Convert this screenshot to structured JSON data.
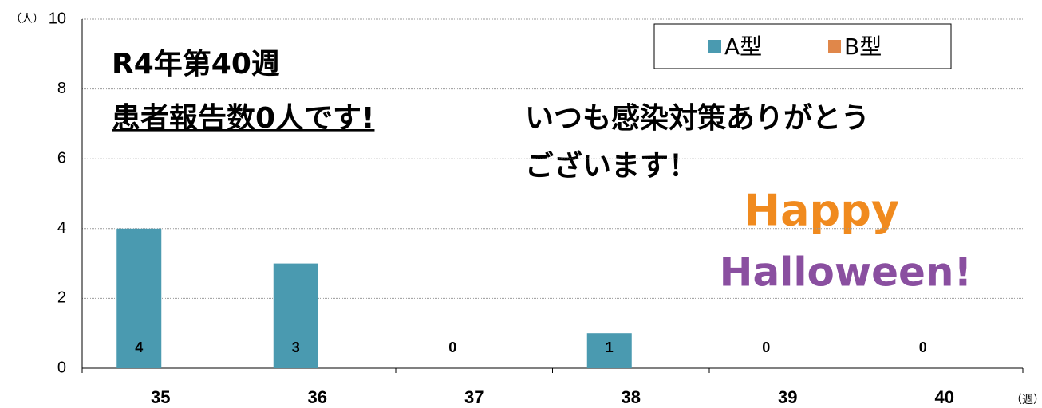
{
  "chart_data": {
    "type": "bar",
    "y_label": "（人）",
    "x_label": "（週）",
    "categories": [
      "35",
      "36",
      "37",
      "38",
      "39",
      "40"
    ],
    "series": [
      {
        "name": "A型",
        "color": "#4a9ab0",
        "values": [
          4,
          3,
          0,
          1,
          0,
          0
        ]
      },
      {
        "name": "B型",
        "color": "#e0874a",
        "values": [
          0,
          0,
          0,
          0,
          0,
          0
        ]
      }
    ],
    "ylim": [
      0,
      10
    ],
    "yticks": [
      0,
      2,
      4,
      6,
      8,
      10
    ],
    "grid": true,
    "legend": "top-right",
    "annotations": [
      "R4年第40週",
      "患者報告数0人です!",
      "いつも感染対策ありがとう",
      "ございます！",
      "Happy",
      "Halloween!"
    ]
  }
}
